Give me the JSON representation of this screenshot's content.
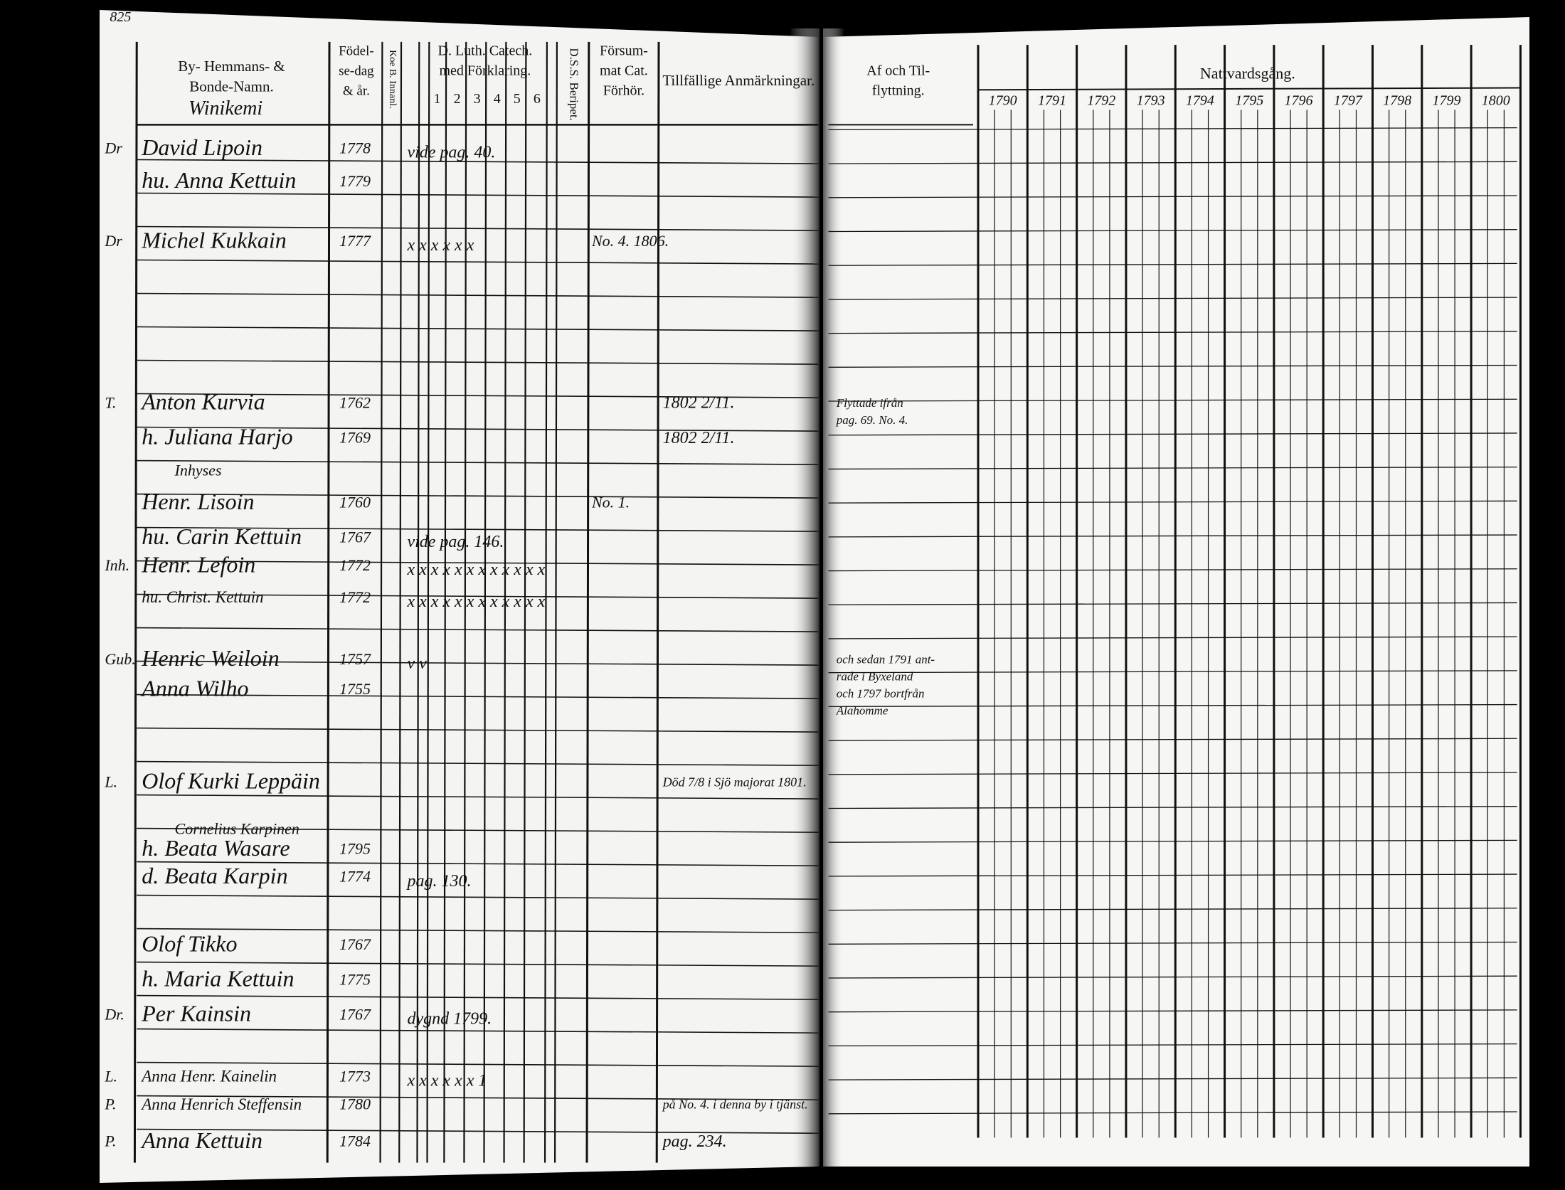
{
  "page_number": "825",
  "left_page": {
    "headers": {
      "name": [
        "By- Hemmans- &",
        "Bonde-Namn."
      ],
      "birth": [
        "Födel-",
        "se-dag",
        "& år."
      ],
      "reading": "Koe B. Innanl.",
      "catechism": [
        "D. Luth. Catech.",
        "med Förklaring."
      ],
      "catechism_columns": [
        "1",
        "2",
        "3",
        "4",
        "5",
        "6"
      ],
      "dss": "D.S.S. Beripet.",
      "missed": [
        "Försum-",
        "mat Cat.",
        "Förhör."
      ],
      "remarks": "Tillfällige Anmärkningar."
    },
    "village": "Winikemi",
    "rows": [
      {
        "mark": "Dr",
        "name": "David Lipoin",
        "birth": "1778",
        "catechism": "vide pag. 40."
      },
      {
        "name": "hu. Anna Kettuin",
        "birth": "1779"
      },
      {
        "mark": "Dr",
        "name": "Michel Kukkain",
        "birth": "1777",
        "catechism": "x x x x x x",
        "missed": "No. 4. 1806."
      },
      {
        "mark": "T.",
        "name": "Anton Kurvia",
        "birth": "1762",
        "remark": "1802 2/11."
      },
      {
        "name": "h. Juliana Harjo",
        "birth": "1769",
        "remark": "1802 2/11."
      },
      {
        "name": "Inhyses"
      },
      {
        "name": "Henr. Lisoin",
        "birth": "1760",
        "missed": "No. 1."
      },
      {
        "name": "hu. Carin Kettuin",
        "birth": "1767",
        "catechism": "vide pag. 146."
      },
      {
        "mark": "Inh.",
        "name": "Henr. Lefoin",
        "birth": "1772",
        "catechism": "x x x x x x x x x x x x"
      },
      {
        "name": "hu. Christ. Kettuin",
        "birth": "1772",
        "catechism": "x x x x x x x x x x x x"
      },
      {
        "mark": "Gub.",
        "name": "Henric Weiloin",
        "birth": "1757",
        "catechism": "v v"
      },
      {
        "name": "Anna Wilho",
        "birth": "1755"
      },
      {
        "mark": "L.",
        "name": "Olof Kurki Leppäin",
        "remark": "Död 7/8 i Sjö majorat 1801."
      },
      {
        "name": "Cornelius Karpinen"
      },
      {
        "name": "h. Beata Wasare",
        "birth": "1795"
      },
      {
        "name": "d. Beata Karpin",
        "birth": "1774",
        "catechism": "pag. 130."
      },
      {
        "name": "Olof Tikko",
        "birth": "1767"
      },
      {
        "name": "h. Maria Kettuin",
        "birth": "1775"
      },
      {
        "mark": "Dr.",
        "name": "Per Kainsin",
        "birth": "1767",
        "catechism": "dygnd 1799."
      },
      {
        "mark": "L.",
        "name": "Anna Henr. Kainelin",
        "birth": "1773",
        "catechism": "x x x x x x 1"
      },
      {
        "mark": "P.",
        "name": "Anna Henrich Steffensin",
        "birth": "1780",
        "remark": "på No. 4. i denna by i tjänst."
      },
      {
        "mark": "P.",
        "name": "Anna Kettuin",
        "birth": "1784",
        "remark": "pag. 234."
      }
    ]
  },
  "right_page": {
    "headers": {
      "moving": [
        "Af och Til-",
        "flyttning."
      ],
      "communion": "Nattvardsgång."
    },
    "years": [
      "1790",
      "1791",
      "1792",
      "1793",
      "1794",
      "1795",
      "1796",
      "1797",
      "1798",
      "1799",
      "1800"
    ],
    "notes": [
      {
        "row": 3,
        "lines": [
          "Flyttade ifrån",
          "pag. 69. No. 4."
        ]
      },
      {
        "row": 10,
        "lines": [
          "och sedan 1791 ant-",
          "rade i Byxeland",
          "och 1797 bortfrån",
          "Alahomme"
        ]
      }
    ]
  }
}
